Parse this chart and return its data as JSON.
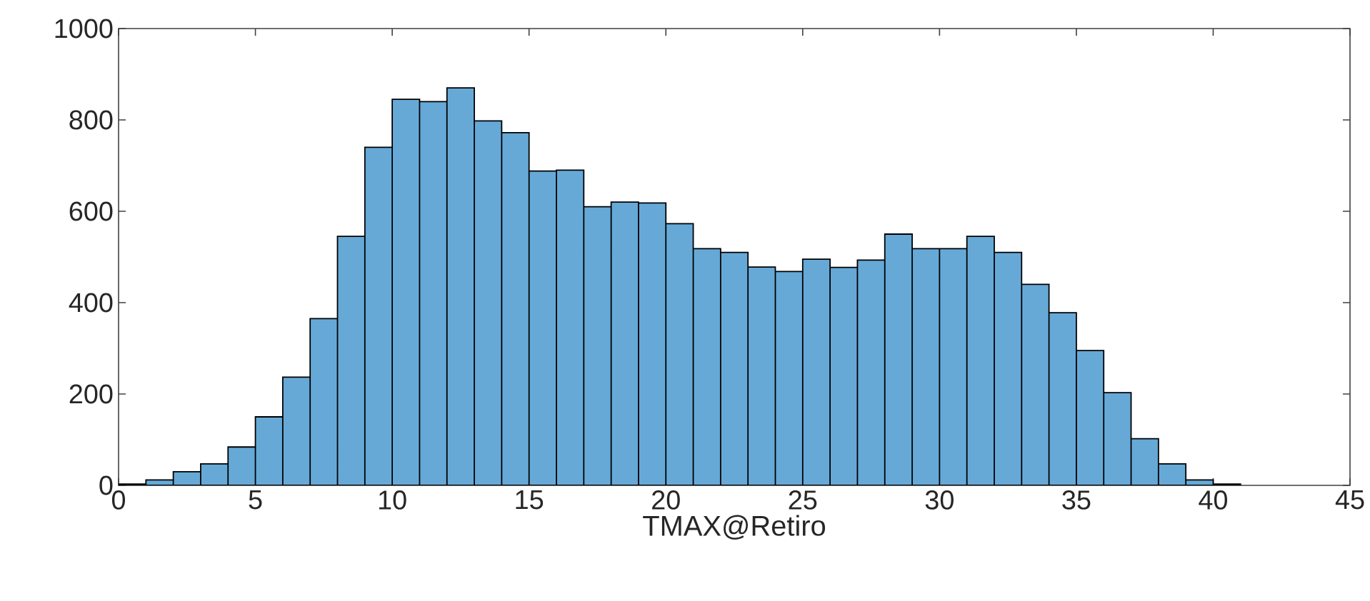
{
  "chart_data": {
    "type": "histogram",
    "xlabel": "TMAX@Retiro",
    "bins": [
      0,
      1,
      2,
      3,
      4,
      5,
      6,
      7,
      8,
      9,
      10,
      11,
      12,
      13,
      14,
      15,
      16,
      17,
      18,
      19,
      20,
      21,
      22,
      23,
      24,
      25,
      26,
      27,
      28,
      29,
      30,
      31,
      32,
      33,
      34,
      35,
      36,
      37,
      38,
      39,
      40,
      41
    ],
    "values": [
      3,
      12,
      30,
      47,
      84,
      150,
      237,
      365,
      545,
      740,
      845,
      840,
      870,
      798,
      772,
      688,
      690,
      610,
      620,
      618,
      573,
      518,
      510,
      478,
      468,
      495,
      477,
      493,
      550,
      518,
      518,
      545,
      510,
      440,
      378,
      295,
      203,
      102,
      47,
      12,
      3
    ],
    "color": "#66a9d7",
    "xlim": [
      0,
      45
    ],
    "xticks": [
      0,
      5,
      10,
      15,
      20,
      25,
      30,
      35,
      40,
      45
    ],
    "ylim": [
      0,
      1000
    ],
    "yticks": [
      0,
      200,
      400,
      600,
      800,
      1000
    ],
    "grid": false
  }
}
